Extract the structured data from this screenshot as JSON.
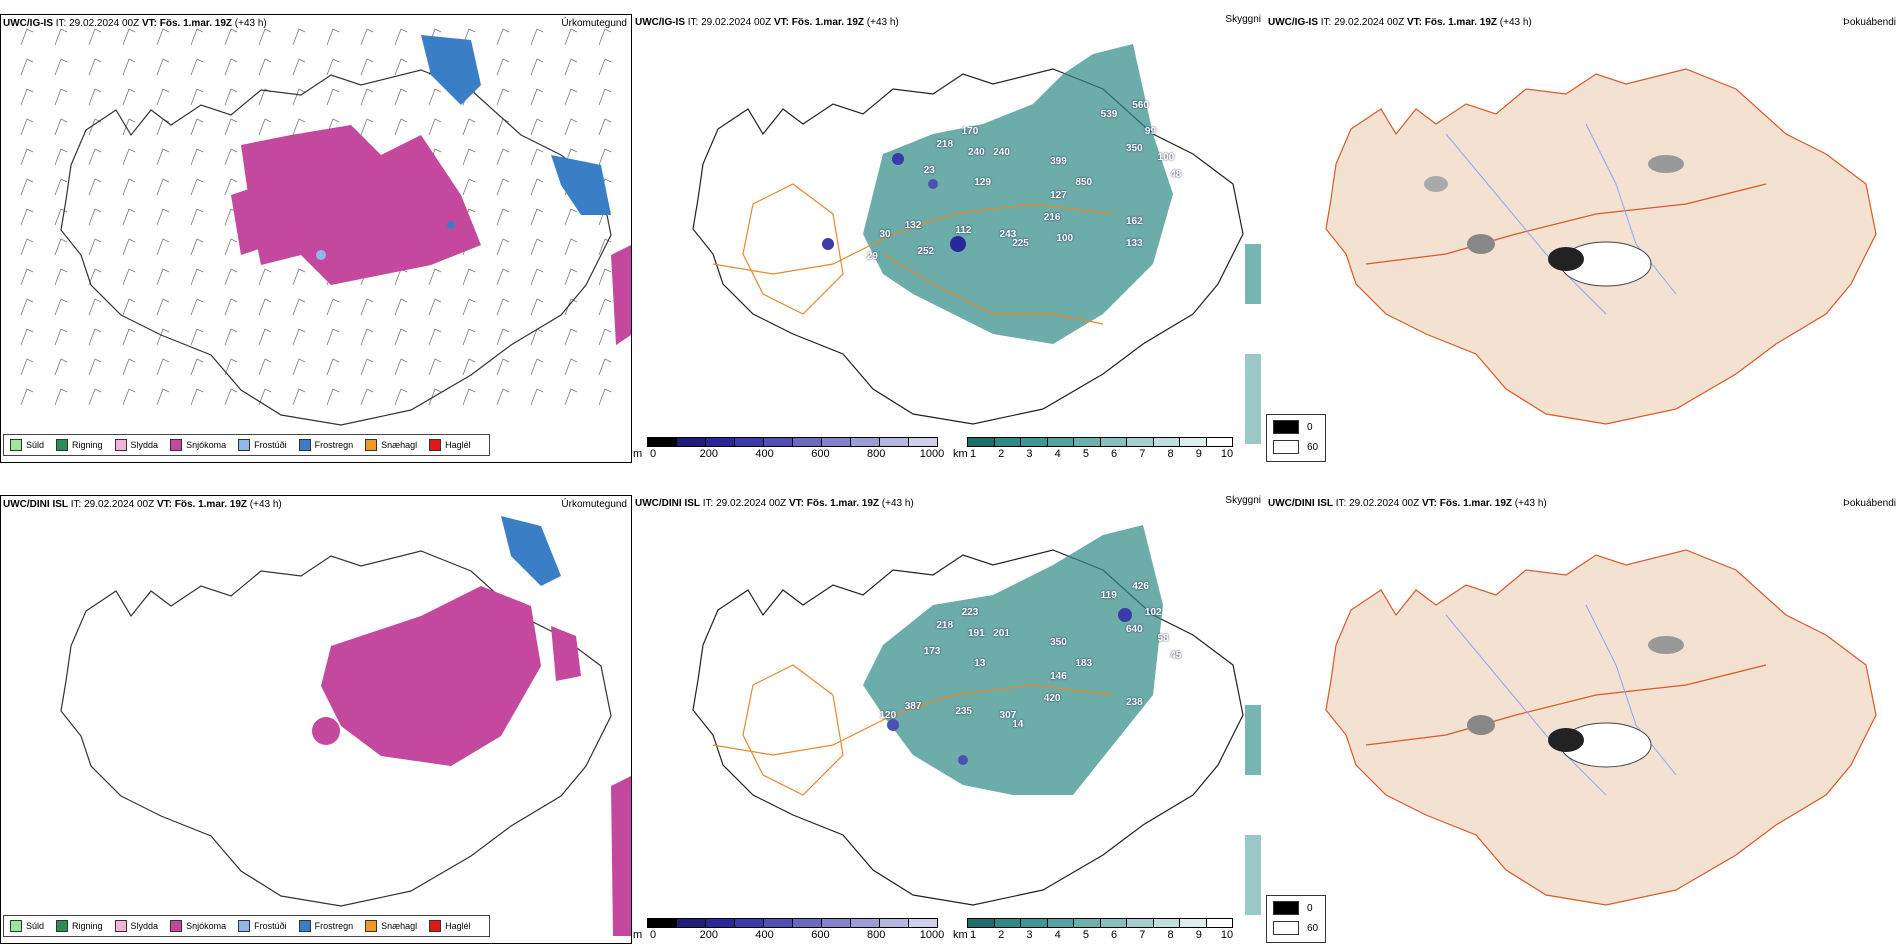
{
  "colors": {
    "snow": "#c4489e",
    "freezing_rain": "#3a7fc6",
    "freezing_drizzle": "#8fb8e8",
    "teal": "#2e8a86",
    "roads": "#e8892c",
    "coast": "#222222",
    "land_fog": "#f3e1d2",
    "roads_fog": "#d85a2a",
    "rivers": "#8ea7f2"
  },
  "precip_legend": [
    {
      "label": "Súld",
      "color": "#9be89b"
    },
    {
      "label": "Rigning",
      "color": "#2e8b57"
    },
    {
      "label": "Slydda",
      "color": "#f3b3d6"
    },
    {
      "label": "Snjókoma",
      "color": "#c4489e"
    },
    {
      "label": "Frostúði",
      "color": "#8fb8e8"
    },
    {
      "label": "Frostregn",
      "color": "#3a7fc6"
    },
    {
      "label": "Snæhagl",
      "color": "#f09a24"
    },
    {
      "label": "Haglél",
      "color": "#e01818"
    }
  ],
  "ceiling_colorbar": {
    "unit": "m",
    "ticks": [
      "0",
      "200",
      "400",
      "600",
      "800",
      "1000"
    ],
    "colors": [
      "#000000",
      "#1e1e78",
      "#28289a",
      "#3a3aa8",
      "#5050b4",
      "#6a6abf",
      "#8484cb",
      "#9d9dd6",
      "#b6b6e1",
      "#cfcfec"
    ]
  },
  "visibility_colorbar": {
    "unit": "km",
    "ticks": [
      "1",
      "2",
      "3",
      "4",
      "5",
      "6",
      "7",
      "8",
      "9",
      "10"
    ],
    "colors": [
      "#1d6f6b",
      "#2e8a86",
      "#3f9793",
      "#55a3a0",
      "#6cb0ad",
      "#86bfbd",
      "#a2cfcd",
      "#bfdfde",
      "#dcefee",
      "#ffffff"
    ]
  },
  "fog_legend": [
    {
      "label": "0",
      "color": "#000000"
    },
    {
      "label": "60",
      "color": "#ffffff"
    }
  ],
  "rows": [
    {
      "model": "UWC/IG-IS",
      "it_label": "IT:",
      "it_value": "29.02.2024 00Z",
      "vt_label": "VT:",
      "vt_value": "Fös. 1.mar. 19Z",
      "lead": "(+43 h)",
      "titles": {
        "precip": "Úrkomutegund",
        "cloud": "Skyggni",
        "fog": "Þokuábendi"
      },
      "ceiling_labels": [
        "170",
        "218",
        "240",
        "240",
        "399",
        "539",
        "560",
        "99",
        "350",
        "100",
        "48",
        "23",
        "129",
        "127",
        "850",
        "216",
        "243",
        "162",
        "30",
        "132",
        "112",
        "225",
        "100",
        "133",
        "252",
        "29"
      ]
    },
    {
      "model": "UWC/DINI ISL",
      "it_label": "IT:",
      "it_value": "29.02.2024 00Z",
      "vt_label": "VT:",
      "vt_value": "Fös. 1.mar. 19Z",
      "lead": "(+43 h)",
      "titles": {
        "precip": "Úrkomutegund",
        "cloud": "Skyggni",
        "fog": "Þokuábendi"
      },
      "ceiling_labels": [
        "223",
        "218",
        "191",
        "201",
        "350",
        "119",
        "426",
        "102",
        "640",
        "58",
        "45",
        "173",
        "13",
        "146",
        "183",
        "420",
        "307",
        "238",
        "120",
        "387",
        "235",
        "14"
      ]
    }
  ]
}
